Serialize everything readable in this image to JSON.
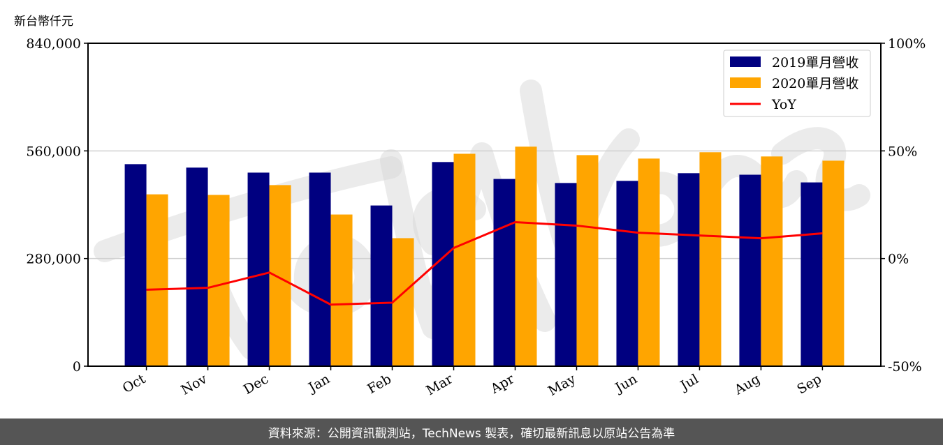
{
  "footer": {
    "source_text": "資料來源：公開資訊觀測站，TechNews 製表，確切最新訊息以原站公告為準"
  },
  "watermark": "TechNews",
  "chart_data": {
    "type": "bar",
    "unit_label": "新台幣仟元",
    "categories": [
      "Oct",
      "Nov",
      "Dec",
      "Jan",
      "Feb",
      "Mar",
      "Apr",
      "May",
      "Jun",
      "Jul",
      "Aug",
      "Sep"
    ],
    "series": [
      {
        "name": "2019單月營收",
        "type": "bar",
        "axis": "left",
        "color": "#000080",
        "values": [
          525500,
          516500,
          503500,
          503500,
          418000,
          531000,
          487000,
          476500,
          482000,
          502000,
          498000,
          478000
        ]
      },
      {
        "name": "2020單月營收",
        "type": "bar",
        "axis": "left",
        "color": "#FFA500",
        "values": [
          447000,
          445500,
          471000,
          394500,
          333000,
          552500,
          571000,
          549000,
          540000,
          556500,
          545500,
          534500
        ]
      },
      {
        "name": "YoY",
        "type": "line",
        "axis": "right",
        "color": "#FF0000",
        "values": [
          -14.5,
          -13.6,
          -6.5,
          -21.4,
          -20.5,
          4.9,
          16.9,
          15.3,
          12.0,
          10.7,
          9.4,
          11.7
        ]
      }
    ],
    "left_axis": {
      "ylim": [
        0,
        840000
      ],
      "ticks": [
        0,
        280000,
        560000,
        840000
      ],
      "tick_labels": [
        "0",
        "280,000",
        "560,000",
        "840,000"
      ]
    },
    "right_axis": {
      "ylim": [
        -50,
        100
      ],
      "ticks": [
        -50,
        0,
        50,
        100
      ],
      "tick_labels": [
        "-50%",
        "0%",
        "50%",
        "100%"
      ]
    },
    "grid": "horizontal",
    "legend": "top-right"
  }
}
